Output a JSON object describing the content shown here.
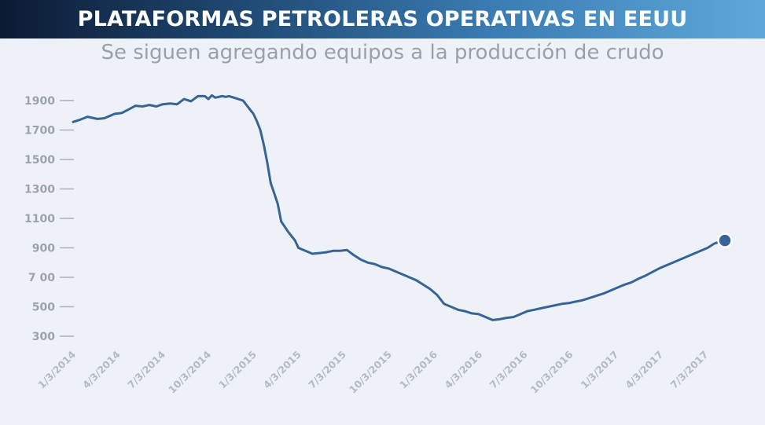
{
  "header": {
    "title": "PLATAFORMAS PETROLERAS OPERATIVAS EN EEUU",
    "subtitle": "Se siguen agregando equipos a la producción de crudo"
  },
  "colors": {
    "line": "#366496",
    "tick": "#9aa3ad",
    "header_dark": "#0c1a33",
    "header_light": "#5fa9da"
  },
  "chart_data": {
    "type": "line",
    "title": "PLATAFORMAS PETROLERAS OPERATIVAS EN EEUU",
    "subtitle": "Se siguen agregando equipos a la producción de crudo",
    "xlabel": "",
    "ylabel": "",
    "ylim": [
      300,
      1900
    ],
    "y_ticks": [
      300,
      500,
      700,
      900,
      1100,
      1300,
      1500,
      1700,
      1900
    ],
    "y_tick_labels": [
      "300",
      "500",
      "7 00",
      "900",
      "1100",
      "1300",
      "1500",
      "1700",
      "1900"
    ],
    "x_range": [
      "2014-01-03",
      "2017-08-11"
    ],
    "x_ticks": [
      "2014-01-03",
      "2014-04-03",
      "2014-07-03",
      "2014-10-03",
      "2015-01-03",
      "2015-04-03",
      "2015-07-03",
      "2015-10-03",
      "2016-01-03",
      "2016-04-03",
      "2016-07-03",
      "2016-10-03",
      "2017-01-03",
      "2017-04-03",
      "2017-07-03"
    ],
    "x_tick_labels": [
      "1/3/2014",
      "4/3/2014",
      "7/3/2014",
      "10/3/2014",
      "1/3/2015",
      "4/3/2015",
      "7/3/2015",
      "10/3/2015",
      "1/3/2016",
      "4/3/2016",
      "7/3/2016",
      "10/3/2016",
      "1/3/2017",
      "4/3/2017",
      "7/3/2017"
    ],
    "grid": false,
    "legend": "none",
    "series": [
      {
        "x": [
          "2014-01-03",
          "2014-01-17",
          "2014-02-01",
          "2014-02-21",
          "2014-03-07",
          "2014-03-28",
          "2014-04-11",
          "2014-04-25",
          "2014-05-09",
          "2014-05-23",
          "2014-06-06",
          "2014-06-20",
          "2014-07-03",
          "2014-07-18",
          "2014-08-01",
          "2014-08-15",
          "2014-08-29",
          "2014-09-12",
          "2014-09-26",
          "2014-10-03",
          "2014-10-10",
          "2014-10-17",
          "2014-10-31",
          "2014-11-07",
          "2014-11-14",
          "2014-11-28",
          "2014-12-12",
          "2014-12-26",
          "2015-01-02",
          "2015-01-09",
          "2015-01-16",
          "2015-01-23",
          "2015-01-30",
          "2015-02-06",
          "2015-02-13",
          "2015-02-20",
          "2015-02-27",
          "2015-03-13",
          "2015-03-27",
          "2015-04-03",
          "2015-04-17",
          "2015-05-01",
          "2015-05-15",
          "2015-05-29",
          "2015-06-12",
          "2015-06-26",
          "2015-07-10",
          "2015-07-24",
          "2015-08-07",
          "2015-08-21",
          "2015-09-04",
          "2015-09-18",
          "2015-10-02",
          "2015-10-16",
          "2015-10-30",
          "2015-11-13",
          "2015-11-27",
          "2015-12-11",
          "2015-12-25",
          "2016-01-08",
          "2016-01-22",
          "2016-02-05",
          "2016-02-19",
          "2016-03-04",
          "2016-03-18",
          "2016-04-01",
          "2016-04-15",
          "2016-04-29",
          "2016-05-13",
          "2016-05-27",
          "2016-06-10",
          "2016-06-24",
          "2016-07-08",
          "2016-07-22",
          "2016-08-05",
          "2016-08-19",
          "2016-09-02",
          "2016-09-16",
          "2016-09-30",
          "2016-10-14",
          "2016-10-28",
          "2016-11-11",
          "2016-11-25",
          "2016-12-09",
          "2016-12-23",
          "2017-01-06",
          "2017-01-20",
          "2017-02-03",
          "2017-02-17",
          "2017-03-03",
          "2017-03-17",
          "2017-03-31",
          "2017-04-14",
          "2017-04-28",
          "2017-05-12",
          "2017-05-26",
          "2017-06-09",
          "2017-06-23",
          "2017-07-07",
          "2017-07-21",
          "2017-08-04",
          "2017-08-11"
        ],
        "y": [
          1755,
          1770,
          1790,
          1775,
          1780,
          1810,
          1815,
          1840,
          1865,
          1860,
          1870,
          1860,
          1875,
          1880,
          1875,
          1910,
          1895,
          1930,
          1930,
          1910,
          1935,
          1920,
          1930,
          1925,
          1930,
          1915,
          1900,
          1840,
          1810,
          1760,
          1700,
          1600,
          1480,
          1340,
          1270,
          1200,
          1080,
          1010,
          950,
          900,
          880,
          860,
          865,
          870,
          880,
          880,
          885,
          850,
          820,
          800,
          790,
          770,
          760,
          740,
          720,
          700,
          680,
          650,
          620,
          580,
          520,
          500,
          480,
          470,
          455,
          450,
          430,
          410,
          415,
          425,
          430,
          450,
          470,
          480,
          490,
          500,
          510,
          520,
          525,
          535,
          545,
          560,
          575,
          590,
          610,
          630,
          650,
          665,
          690,
          710,
          735,
          760,
          780,
          800,
          820,
          840,
          860,
          880,
          900,
          930,
          945,
          950
        ]
      }
    ]
  }
}
